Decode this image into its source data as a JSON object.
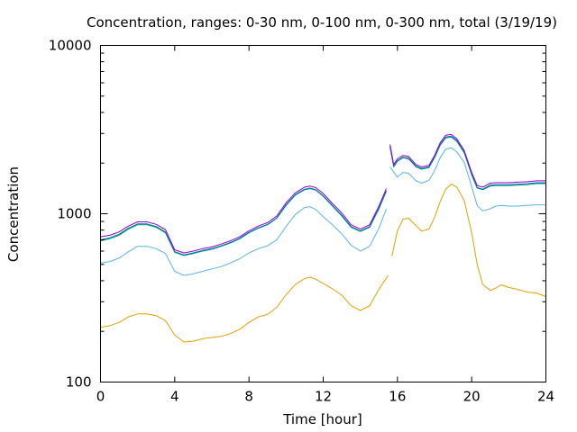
{
  "chart_data": {
    "type": "line",
    "title": "Concentration, ranges: 0-30 nm, 0-100 nm, 0-300 nm, total (3/19/19)",
    "xlabel": "Time [hour]",
    "ylabel": "Concentration",
    "xlim": [
      0,
      24
    ],
    "ylim": [
      100,
      10000
    ],
    "yscale": "log",
    "grid": false,
    "legend": "none",
    "xticks": [
      0,
      4,
      8,
      12,
      16,
      20,
      24
    ],
    "yticks": [
      100,
      1000,
      10000
    ],
    "ytick_labels": [
      "100",
      "1000",
      "10000"
    ],
    "series": [
      {
        "color": "#e69f00",
        "points": [
          [
            0,
            212
          ],
          [
            0.5,
            216
          ],
          [
            1,
            226
          ],
          [
            1.5,
            244
          ],
          [
            2,
            254
          ],
          [
            2.5,
            254
          ],
          [
            3,
            248
          ],
          [
            3.5,
            232
          ],
          [
            4,
            190
          ],
          [
            4.5,
            173
          ],
          [
            5,
            175
          ],
          [
            5.5,
            181
          ],
          [
            6,
            184
          ],
          [
            6.5,
            187
          ],
          [
            7,
            194
          ],
          [
            7.5,
            206
          ],
          [
            8,
            226
          ],
          [
            8.5,
            244
          ],
          [
            9,
            252
          ],
          [
            9.5,
            278
          ],
          [
            10,
            330
          ],
          [
            10.5,
            380
          ],
          [
            11,
            412
          ],
          [
            11.3,
            420
          ],
          [
            11.6,
            408
          ],
          [
            12,
            385
          ],
          [
            12.5,
            358
          ],
          [
            13,
            328
          ],
          [
            13.5,
            284
          ],
          [
            14,
            266
          ],
          [
            14.5,
            284
          ],
          [
            15,
            357
          ],
          [
            15.5,
            430
          ],
          null,
          [
            15.7,
            560
          ],
          [
            16,
            790
          ],
          [
            16.3,
            930
          ],
          [
            16.6,
            940
          ],
          [
            17,
            850
          ],
          [
            17.3,
            790
          ],
          [
            17.7,
            810
          ],
          [
            18,
            950
          ],
          [
            18.3,
            1180
          ],
          [
            18.6,
            1400
          ],
          [
            18.9,
            1500
          ],
          [
            19.2,
            1440
          ],
          [
            19.6,
            1200
          ],
          [
            20,
            770
          ],
          [
            20.3,
            500
          ],
          [
            20.6,
            380
          ],
          [
            21,
            350
          ],
          [
            21.3,
            362
          ],
          [
            21.6,
            378
          ],
          [
            22,
            365
          ],
          [
            22.5,
            355
          ],
          [
            23,
            342
          ],
          [
            23.5,
            338
          ],
          [
            24,
            322
          ]
        ]
      },
      {
        "color": "#56b4e9",
        "points": [
          [
            0,
            510
          ],
          [
            0.5,
            520
          ],
          [
            1,
            545
          ],
          [
            1.5,
            595
          ],
          [
            2,
            640
          ],
          [
            2.5,
            640
          ],
          [
            3,
            620
          ],
          [
            3.5,
            580
          ],
          [
            4,
            455
          ],
          [
            4.5,
            430
          ],
          [
            5,
            440
          ],
          [
            5.5,
            455
          ],
          [
            6,
            470
          ],
          [
            6.5,
            485
          ],
          [
            7,
            510
          ],
          [
            7.5,
            540
          ],
          [
            8,
            585
          ],
          [
            8.5,
            620
          ],
          [
            9,
            645
          ],
          [
            9.5,
            700
          ],
          [
            10,
            840
          ],
          [
            10.5,
            990
          ],
          [
            11,
            1090
          ],
          [
            11.3,
            1100
          ],
          [
            11.6,
            1060
          ],
          [
            12,
            960
          ],
          [
            12.5,
            860
          ],
          [
            13,
            760
          ],
          [
            13.5,
            650
          ],
          [
            14,
            600
          ],
          [
            14.5,
            640
          ],
          [
            15,
            820
          ],
          [
            15.4,
            1070
          ],
          null,
          [
            15.6,
            1900
          ],
          [
            16,
            1650
          ],
          [
            16.3,
            1760
          ],
          [
            16.6,
            1740
          ],
          [
            17,
            1570
          ],
          [
            17.3,
            1520
          ],
          [
            17.7,
            1580
          ],
          [
            18,
            1800
          ],
          [
            18.3,
            2150
          ],
          [
            18.6,
            2420
          ],
          [
            18.9,
            2470
          ],
          [
            19.2,
            2330
          ],
          [
            19.6,
            2020
          ],
          [
            20,
            1450
          ],
          [
            20.3,
            1120
          ],
          [
            20.6,
            1040
          ],
          [
            21,
            1070
          ],
          [
            21.3,
            1110
          ],
          [
            21.6,
            1120
          ],
          [
            22,
            1110
          ],
          [
            22.5,
            1110
          ],
          [
            23,
            1120
          ],
          [
            23.5,
            1130
          ],
          [
            24,
            1130
          ]
        ]
      },
      {
        "color": "#009e73",
        "points": [
          [
            0,
            690
          ],
          [
            0.5,
            710
          ],
          [
            1,
            745
          ],
          [
            1.5,
            810
          ],
          [
            2,
            860
          ],
          [
            2.5,
            860
          ],
          [
            3,
            830
          ],
          [
            3.5,
            770
          ],
          [
            4,
            590
          ],
          [
            4.5,
            565
          ],
          [
            5,
            580
          ],
          [
            5.5,
            600
          ],
          [
            6,
            615
          ],
          [
            6.5,
            640
          ],
          [
            7,
            670
          ],
          [
            7.5,
            710
          ],
          [
            8,
            770
          ],
          [
            8.5,
            820
          ],
          [
            9,
            860
          ],
          [
            9.5,
            940
          ],
          [
            10,
            1120
          ],
          [
            10.5,
            1290
          ],
          [
            11,
            1390
          ],
          [
            11.3,
            1410
          ],
          [
            11.6,
            1380
          ],
          [
            12,
            1270
          ],
          [
            12.5,
            1110
          ],
          [
            13,
            970
          ],
          [
            13.5,
            830
          ],
          [
            14,
            785
          ],
          [
            14.5,
            830
          ],
          [
            15,
            1070
          ],
          [
            15.4,
            1360
          ],
          null,
          [
            15.6,
            2500
          ],
          [
            15.8,
            1900
          ],
          [
            16,
            2050
          ],
          [
            16.3,
            2150
          ],
          [
            16.6,
            2120
          ],
          [
            17,
            1900
          ],
          [
            17.3,
            1840
          ],
          [
            17.7,
            1880
          ],
          [
            18,
            2150
          ],
          [
            18.3,
            2550
          ],
          [
            18.6,
            2820
          ],
          [
            18.9,
            2850
          ],
          [
            19.2,
            2690
          ],
          [
            19.6,
            2300
          ],
          [
            20,
            1700
          ],
          [
            20.3,
            1420
          ],
          [
            20.6,
            1390
          ],
          [
            21,
            1460
          ],
          [
            21.3,
            1470
          ],
          [
            21.6,
            1470
          ],
          [
            22,
            1470
          ],
          [
            22.5,
            1480
          ],
          [
            23,
            1490
          ],
          [
            23.5,
            1510
          ],
          [
            24,
            1510
          ]
        ]
      },
      {
        "color": "#0072b2",
        "points": [
          [
            0,
            700
          ],
          [
            0.5,
            720
          ],
          [
            1,
            755
          ],
          [
            1.5,
            820
          ],
          [
            2,
            870
          ],
          [
            2.5,
            870
          ],
          [
            3,
            840
          ],
          [
            3.5,
            780
          ],
          [
            4,
            595
          ],
          [
            4.5,
            570
          ],
          [
            5,
            585
          ],
          [
            5.5,
            605
          ],
          [
            6,
            620
          ],
          [
            6.5,
            645
          ],
          [
            7,
            675
          ],
          [
            7.5,
            715
          ],
          [
            8,
            775
          ],
          [
            8.5,
            825
          ],
          [
            9,
            865
          ],
          [
            9.5,
            945
          ],
          [
            10,
            1130
          ],
          [
            10.5,
            1300
          ],
          [
            11,
            1400
          ],
          [
            11.3,
            1420
          ],
          [
            11.6,
            1390
          ],
          [
            12,
            1280
          ],
          [
            12.5,
            1120
          ],
          [
            13,
            980
          ],
          [
            13.5,
            840
          ],
          [
            14,
            790
          ],
          [
            14.5,
            840
          ],
          [
            15,
            1080
          ],
          [
            15.4,
            1370
          ],
          null,
          [
            15.6,
            2520
          ],
          [
            15.8,
            1920
          ],
          [
            16,
            2070
          ],
          [
            16.3,
            2170
          ],
          [
            16.6,
            2140
          ],
          [
            17,
            1920
          ],
          [
            17.3,
            1860
          ],
          [
            17.7,
            1900
          ],
          [
            18,
            2170
          ],
          [
            18.3,
            2580
          ],
          [
            18.6,
            2860
          ],
          [
            18.9,
            2890
          ],
          [
            19.2,
            2730
          ],
          [
            19.6,
            2330
          ],
          [
            20,
            1720
          ],
          [
            20.3,
            1430
          ],
          [
            20.6,
            1400
          ],
          [
            21,
            1480
          ],
          [
            21.3,
            1490
          ],
          [
            21.6,
            1490
          ],
          [
            22,
            1490
          ],
          [
            22.5,
            1500
          ],
          [
            23,
            1510
          ],
          [
            23.5,
            1530
          ],
          [
            24,
            1530
          ]
        ]
      },
      {
        "color": "#9400d3",
        "points": [
          [
            0,
            730
          ],
          [
            0.5,
            745
          ],
          [
            1,
            780
          ],
          [
            1.5,
            845
          ],
          [
            2,
            895
          ],
          [
            2.5,
            895
          ],
          [
            3,
            865
          ],
          [
            3.5,
            805
          ],
          [
            4,
            610
          ],
          [
            4.5,
            585
          ],
          [
            5,
            600
          ],
          [
            5.5,
            620
          ],
          [
            6,
            635
          ],
          [
            6.5,
            660
          ],
          [
            7,
            690
          ],
          [
            7.5,
            730
          ],
          [
            8,
            790
          ],
          [
            8.5,
            845
          ],
          [
            9,
            885
          ],
          [
            9.5,
            970
          ],
          [
            10,
            1160
          ],
          [
            10.5,
            1330
          ],
          [
            11,
            1440
          ],
          [
            11.3,
            1460
          ],
          [
            11.6,
            1430
          ],
          [
            12,
            1320
          ],
          [
            12.5,
            1150
          ],
          [
            13,
            1010
          ],
          [
            13.5,
            860
          ],
          [
            14,
            810
          ],
          [
            14.5,
            860
          ],
          [
            15,
            1110
          ],
          [
            15.4,
            1410
          ],
          null,
          [
            15.6,
            2580
          ],
          [
            15.8,
            1960
          ],
          [
            16,
            2120
          ],
          [
            16.3,
            2220
          ],
          [
            16.6,
            2190
          ],
          [
            17,
            1960
          ],
          [
            17.3,
            1900
          ],
          [
            17.7,
            1940
          ],
          [
            18,
            2220
          ],
          [
            18.3,
            2640
          ],
          [
            18.6,
            2930
          ],
          [
            18.9,
            2960
          ],
          [
            19.2,
            2790
          ],
          [
            19.6,
            2380
          ],
          [
            20,
            1760
          ],
          [
            20.3,
            1470
          ],
          [
            20.6,
            1440
          ],
          [
            21,
            1520
          ],
          [
            21.3,
            1530
          ],
          [
            21.6,
            1530
          ],
          [
            22,
            1530
          ],
          [
            22.5,
            1540
          ],
          [
            23,
            1550
          ],
          [
            23.5,
            1570
          ],
          [
            24,
            1570
          ]
        ]
      }
    ]
  }
}
